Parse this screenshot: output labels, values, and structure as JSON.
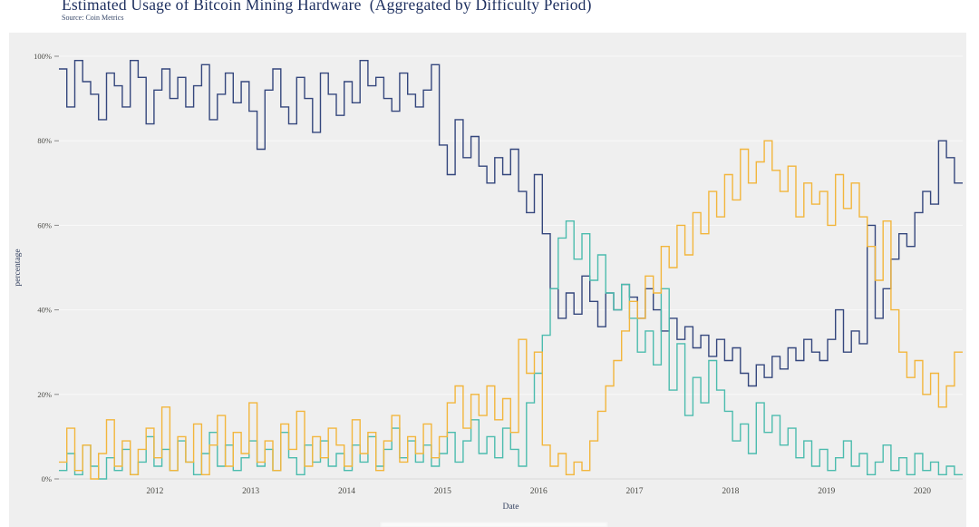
{
  "page": {
    "title": "Estimated Usage of Bitcoin Mining Hardware  (Aggregated by Difficulty Period)",
    "source": "Source: Coin Metrics"
  },
  "colors": {
    "background_panel": "#efefef",
    "title_text": "#1d2f5f",
    "gridline": "#f9f9f9",
    "axis_line": "#d9d9d9",
    "series_navy": "#35477d",
    "series_teal": "#4cbcae",
    "series_orange": "#f2b63d"
  },
  "chart_data": {
    "type": "line",
    "step": true,
    "title": "Estimated Usage of Bitcoin Mining Hardware  (Aggregated by Difficulty Period)",
    "subtitle": "Source: Coin Metrics",
    "xlabel": "Date",
    "ylabel": "percentage",
    "x_domain": [
      2011.0,
      2020.42
    ],
    "ylim": [
      0,
      100
    ],
    "grid": "horizontal",
    "legend_position": "cropped-out-of-frame",
    "x_ticks": [
      2012,
      2013,
      2014,
      2015,
      2016,
      2017,
      2018,
      2019,
      2020
    ],
    "y_ticks": [
      {
        "value": 0,
        "label": "0%"
      },
      {
        "value": 20,
        "label": "20%"
      },
      {
        "value": 40,
        "label": "40%"
      },
      {
        "value": 60,
        "label": "60%"
      },
      {
        "value": 80,
        "label": "80%"
      },
      {
        "value": 100,
        "label": "100%"
      }
    ],
    "x_start": 2011.0,
    "x_step": 0.0826,
    "series": [
      {
        "name": "navy",
        "color": "#35477d",
        "values": [
          97,
          88,
          99,
          94,
          91,
          85,
          96,
          93,
          88,
          99,
          95,
          84,
          92,
          97,
          90,
          95,
          88,
          93,
          98,
          85,
          91,
          96,
          89,
          94,
          87,
          78,
          92,
          97,
          88,
          84,
          95,
          90,
          82,
          96,
          91,
          86,
          94,
          89,
          99,
          93,
          95,
          90,
          87,
          96,
          91,
          88,
          92,
          98,
          79,
          72,
          85,
          76,
          81,
          74,
          70,
          76,
          72,
          78,
          68,
          63,
          72,
          58,
          45,
          38,
          44,
          39,
          48,
          42,
          36,
          44,
          40,
          46,
          43,
          38,
          45,
          40,
          35,
          38,
          33,
          36,
          31,
          34,
          29,
          33,
          28,
          31,
          25,
          22,
          27,
          24,
          29,
          26,
          31,
          28,
          33,
          30,
          28,
          33,
          40,
          30,
          35,
          32,
          60,
          38,
          45,
          52,
          58,
          55,
          63,
          68,
          65,
          80,
          76,
          70
        ]
      },
      {
        "name": "teal",
        "color": "#4cbcae",
        "values": [
          2,
          6,
          1,
          8,
          3,
          0,
          5,
          2,
          7,
          1,
          4,
          10,
          3,
          7,
          2,
          9,
          4,
          1,
          6,
          11,
          3,
          8,
          2,
          5,
          9,
          3,
          7,
          2,
          11,
          5,
          1,
          8,
          4,
          9,
          3,
          6,
          2,
          8,
          4,
          10,
          3,
          7,
          12,
          5,
          9,
          4,
          8,
          3,
          6,
          11,
          4,
          9,
          14,
          6,
          10,
          5,
          12,
          7,
          3,
          18,
          25,
          34,
          45,
          57,
          61,
          52,
          58,
          47,
          53,
          44,
          40,
          46,
          38,
          30,
          35,
          27,
          45,
          21,
          32,
          15,
          24,
          18,
          28,
          21,
          16,
          9,
          13,
          6,
          18,
          11,
          15,
          8,
          12,
          5,
          9,
          3,
          7,
          2,
          5,
          9,
          3,
          6,
          1,
          4,
          8,
          2,
          5,
          1,
          6,
          2,
          4,
          1,
          3,
          1
        ]
      },
      {
        "name": "orange",
        "color": "#f2b63d",
        "values": [
          4,
          12,
          2,
          8,
          0,
          6,
          14,
          3,
          9,
          1,
          7,
          12,
          5,
          17,
          2,
          10,
          4,
          13,
          1,
          8,
          15,
          3,
          11,
          6,
          18,
          4,
          9,
          2,
          13,
          7,
          16,
          3,
          10,
          5,
          12,
          8,
          3,
          14,
          6,
          11,
          2,
          9,
          15,
          4,
          10,
          6,
          13,
          5,
          10,
          18,
          22,
          12,
          20,
          15,
          22,
          14,
          19,
          11,
          33,
          25,
          30,
          8,
          3,
          6,
          1,
          4,
          2,
          9,
          16,
          22,
          28,
          35,
          42,
          38,
          48,
          44,
          55,
          50,
          60,
          53,
          63,
          58,
          68,
          62,
          72,
          66,
          78,
          70,
          75,
          80,
          73,
          68,
          74,
          62,
          70,
          65,
          68,
          60,
          72,
          64,
          70,
          62,
          55,
          47,
          61,
          40,
          30,
          24,
          28,
          20,
          25,
          17,
          22,
          30
        ]
      }
    ]
  }
}
